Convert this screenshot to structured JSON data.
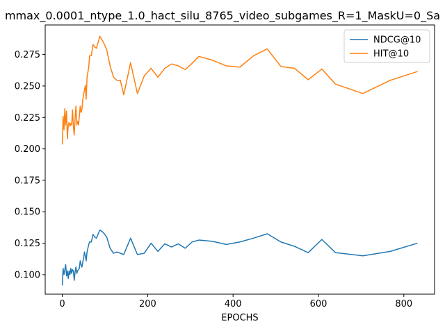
{
  "chart_data": {
    "type": "line",
    "title": "mmax_0.0001_ntype_1.0_hact_silu_8765_video_subgames_R=1_MaskU=0_Sa",
    "xlabel": "EPOCHS",
    "ylabel": "",
    "xlim": [
      -40,
      872
    ],
    "ylim": [
      0.0845,
      0.2985
    ],
    "xticks": [
      0,
      200,
      400,
      600,
      800
    ],
    "xtick_labels": [
      "0",
      "200",
      "400",
      "600",
      "800"
    ],
    "yticks": [
      0.1,
      0.125,
      0.15,
      0.175,
      0.2,
      0.225,
      0.25,
      0.275
    ],
    "ytick_labels": [
      "0.100",
      "0.125",
      "0.150",
      "0.175",
      "0.200",
      "0.225",
      "0.250",
      "0.275"
    ],
    "grid": false,
    "legend_position": "top-right",
    "series": [
      {
        "name": "NDCG@10",
        "color": "#1f77b4",
        "points": [
          [
            0,
            0.0915
          ],
          [
            2,
            0.105
          ],
          [
            4,
            0.1
          ],
          [
            6,
            0.104
          ],
          [
            8,
            0.108
          ],
          [
            10,
            0.099
          ],
          [
            12,
            0.103
          ],
          [
            14,
            0.097
          ],
          [
            16,
            0.103
          ],
          [
            18,
            0.1
          ],
          [
            20,
            0.105
          ],
          [
            22,
            0.101
          ],
          [
            24,
            0.104
          ],
          [
            26,
            0.103
          ],
          [
            28,
            0.0955
          ],
          [
            30,
            0.102
          ],
          [
            32,
            0.106
          ],
          [
            34,
            0.101
          ],
          [
            36,
            0.103
          ],
          [
            38,
            0.104
          ],
          [
            40,
            0.105
          ],
          [
            42,
            0.111
          ],
          [
            44,
            0.108
          ],
          [
            46,
            0.106
          ],
          [
            48,
            0.11
          ],
          [
            50,
            0.113
          ],
          [
            52,
            0.118
          ],
          [
            54,
            0.115
          ],
          [
            56,
            0.111
          ],
          [
            58,
            0.118
          ],
          [
            62,
            0.124
          ],
          [
            64,
            0.126
          ],
          [
            68,
            0.126
          ],
          [
            72,
            0.132
          ],
          [
            76,
            0.13
          ],
          [
            80,
            0.129
          ],
          [
            88,
            0.1355
          ],
          [
            96,
            0.1335
          ],
          [
            104,
            0.13
          ],
          [
            112,
            0.121
          ],
          [
            120,
            0.117
          ],
          [
            128,
            0.118
          ],
          [
            136,
            0.117
          ],
          [
            144,
            0.116
          ],
          [
            160,
            0.129
          ],
          [
            176,
            0.116
          ],
          [
            192,
            0.117
          ],
          [
            208,
            0.125
          ],
          [
            224,
            0.1185
          ],
          [
            240,
            0.1245
          ],
          [
            256,
            0.122
          ],
          [
            272,
            0.1245
          ],
          [
            288,
            0.121
          ],
          [
            304,
            0.126
          ],
          [
            320,
            0.1275
          ],
          [
            352,
            0.1265
          ],
          [
            384,
            0.124
          ],
          [
            416,
            0.126
          ],
          [
            448,
            0.129
          ],
          [
            480,
            0.1325
          ],
          [
            512,
            0.126
          ],
          [
            544,
            0.1225
          ],
          [
            576,
            0.1175
          ],
          [
            608,
            0.128
          ],
          [
            640,
            0.1175
          ],
          [
            704,
            0.115
          ],
          [
            768,
            0.1185
          ],
          [
            832,
            0.125
          ]
        ]
      },
      {
        "name": "HIT@10",
        "color": "#ff7f0e",
        "points": [
          [
            0,
            0.2035
          ],
          [
            2,
            0.226
          ],
          [
            4,
            0.215
          ],
          [
            6,
            0.232
          ],
          [
            8,
            0.219
          ],
          [
            10,
            0.23
          ],
          [
            12,
            0.208
          ],
          [
            14,
            0.219
          ],
          [
            16,
            0.221
          ],
          [
            18,
            0.218
          ],
          [
            20,
            0.22
          ],
          [
            22,
            0.219
          ],
          [
            24,
            0.231
          ],
          [
            26,
            0.218
          ],
          [
            28,
            0.211
          ],
          [
            30,
            0.224
          ],
          [
            32,
            0.234
          ],
          [
            34,
            0.219
          ],
          [
            36,
            0.222
          ],
          [
            38,
            0.219
          ],
          [
            40,
            0.226
          ],
          [
            42,
            0.234
          ],
          [
            44,
            0.229
          ],
          [
            46,
            0.231
          ],
          [
            48,
            0.239
          ],
          [
            50,
            0.243
          ],
          [
            52,
            0.247
          ],
          [
            54,
            0.2505
          ],
          [
            56,
            0.2395
          ],
          [
            58,
            0.257
          ],
          [
            62,
            0.265
          ],
          [
            64,
            0.274
          ],
          [
            68,
            0.274
          ],
          [
            72,
            0.283
          ],
          [
            76,
            0.281
          ],
          [
            80,
            0.28
          ],
          [
            88,
            0.2895
          ],
          [
            96,
            0.285
          ],
          [
            104,
            0.279
          ],
          [
            112,
            0.266
          ],
          [
            120,
            0.257
          ],
          [
            128,
            0.2545
          ],
          [
            136,
            0.2545
          ],
          [
            144,
            0.243
          ],
          [
            160,
            0.2685
          ],
          [
            176,
            0.244
          ],
          [
            192,
            0.258
          ],
          [
            208,
            0.264
          ],
          [
            224,
            0.257
          ],
          [
            240,
            0.264
          ],
          [
            256,
            0.2675
          ],
          [
            272,
            0.266
          ],
          [
            288,
            0.263
          ],
          [
            304,
            0.268
          ],
          [
            320,
            0.2735
          ],
          [
            352,
            0.2705
          ],
          [
            384,
            0.266
          ],
          [
            416,
            0.265
          ],
          [
            448,
            0.274
          ],
          [
            480,
            0.2795
          ],
          [
            512,
            0.2655
          ],
          [
            544,
            0.264
          ],
          [
            576,
            0.255
          ],
          [
            608,
            0.2635
          ],
          [
            640,
            0.2515
          ],
          [
            704,
            0.244
          ],
          [
            768,
            0.2545
          ],
          [
            832,
            0.2615
          ]
        ]
      }
    ]
  }
}
